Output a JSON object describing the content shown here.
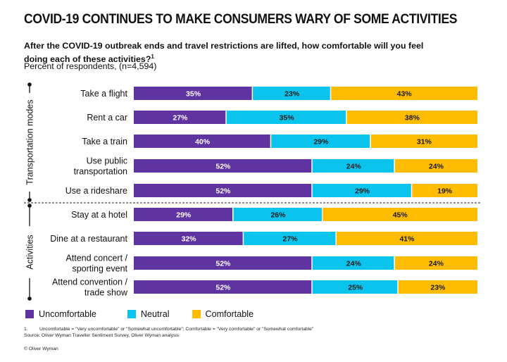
{
  "header": {
    "title": "COVID-19 CONTINUES TO MAKE CONSUMERS WARY OF SOME ACTIVITIES",
    "question": "After the COVID-19 outbreak ends and travel restrictions are lifted, how comfortable will you feel doing each of these activities?",
    "question_footnote_mark": "1",
    "subtitle": "Percent of respondents, (n=4,594)"
  },
  "chart_data": {
    "type": "bar",
    "orientation": "horizontal",
    "stacked": true,
    "title": "COVID-19 CONTINUES TO MAKE CONSUMERS WARY OF SOME ACTIVITIES",
    "xlabel": "",
    "ylabel": "",
    "unit": "%",
    "groups": [
      {
        "label": "Transportation modes",
        "categories": [
          "Take a flight",
          "Rent a car",
          "Take a train",
          "Use public transportation",
          "Use a rideshare"
        ]
      },
      {
        "label": "Activities",
        "categories": [
          "Stay at a hotel",
          "Dine at a restaurant",
          "Attend concert / sporting event",
          "Attend convention / trade show"
        ]
      }
    ],
    "categories": [
      {
        "label_lines": [
          "Take a flight"
        ],
        "group": 0
      },
      {
        "label_lines": [
          "Rent a car"
        ],
        "group": 0
      },
      {
        "label_lines": [
          "Take a train"
        ],
        "group": 0
      },
      {
        "label_lines": [
          "Use public",
          "transportation"
        ],
        "group": 0
      },
      {
        "label_lines": [
          "Use a rideshare"
        ],
        "group": 0
      },
      {
        "label_lines": [
          "Stay at a hotel"
        ],
        "group": 1
      },
      {
        "label_lines": [
          "Dine at a restaurant"
        ],
        "group": 1
      },
      {
        "label_lines": [
          "Attend concert /",
          "sporting event"
        ],
        "group": 1
      },
      {
        "label_lines": [
          "Attend convention /",
          "trade show"
        ],
        "group": 1
      }
    ],
    "series": [
      {
        "name": "Uncomfortable",
        "color": "#5F33A0",
        "label_color": "#ffffff",
        "values": [
          35,
          27,
          40,
          52,
          52,
          29,
          32,
          52,
          52
        ]
      },
      {
        "name": "Neutral",
        "color": "#0BC4EE",
        "label_color": "#1a1a1a",
        "values": [
          23,
          35,
          29,
          24,
          29,
          26,
          27,
          24,
          25
        ]
      },
      {
        "name": "Comfortable",
        "color": "#FFBC00",
        "label_color": "#1a1a1a",
        "values": [
          43,
          38,
          31,
          24,
          19,
          45,
          41,
          24,
          23
        ]
      }
    ],
    "legend_position": "bottom-left",
    "grid": false
  },
  "footer": {
    "footnote_number": "1.",
    "footnote_text": "Uncomfortable = \"Very uncomfortable\" or \"Somewhat uncomfortable\"; Comfortable = \"Very comfortable\" or \"Somewhat comfortable\"",
    "source": "Source: Oliver Wyman Traveller Sentiment Survey, Oliver Wyman analysis",
    "copyright": "© Oliver Wyman"
  }
}
